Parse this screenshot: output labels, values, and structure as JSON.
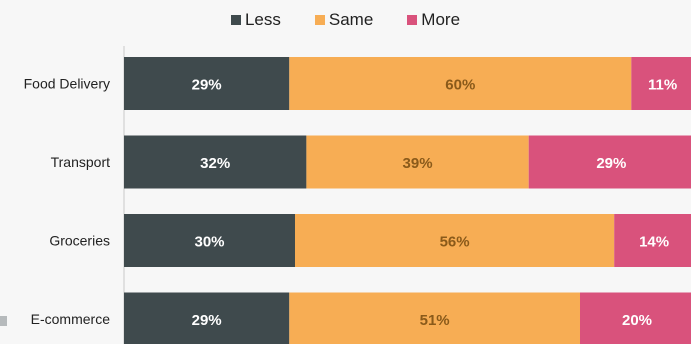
{
  "legend": {
    "less": "Less",
    "same": "Same",
    "more": "More"
  },
  "chart_data": {
    "type": "bar",
    "orientation": "horizontal",
    "stacked": true,
    "categories": [
      "Food Delivery",
      "Transport",
      "Groceries",
      "E-commerce"
    ],
    "series": [
      {
        "name": "Less",
        "values": [
          29,
          32,
          30,
          29
        ],
        "color": "#3f4a4d"
      },
      {
        "name": "Same",
        "values": [
          60,
          39,
          56,
          51
        ],
        "color": "#f7ad54"
      },
      {
        "name": "More",
        "values": [
          11,
          29,
          14,
          20
        ],
        "color": "#d9527c"
      }
    ],
    "data_labels": [
      [
        "29%",
        "60%",
        "11%"
      ],
      [
        "32%",
        "39%",
        "29%"
      ],
      [
        "30%",
        "56%",
        "14%"
      ],
      [
        "29%",
        "51%",
        "20%"
      ]
    ],
    "label_colors": [
      "#ffffff",
      "#8a5a1a",
      "#ffffff"
    ],
    "xlim": [
      0,
      100
    ],
    "legend_position": "top-center",
    "grid": false
  }
}
